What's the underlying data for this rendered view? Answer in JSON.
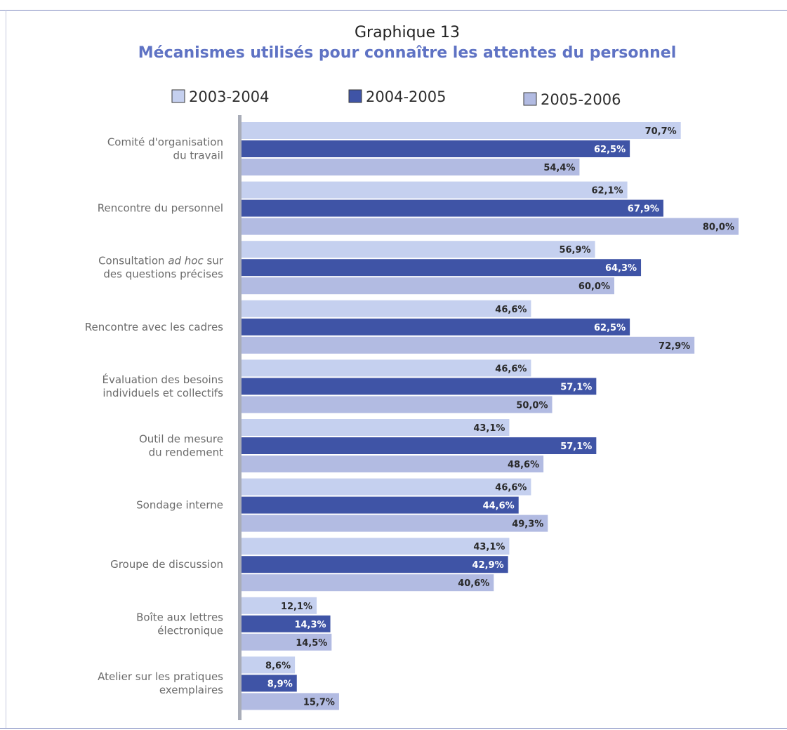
{
  "title": "Graphique 13",
  "subtitle": "Mécanismes utilisés pour connaître les attentes du personnel",
  "colors": {
    "light": "#c5d0ef",
    "dark": "#3f54a6",
    "medium": "#b2bbe2",
    "axis": "#a9adb8",
    "label_dark": "#2a2a2a",
    "label_light": "#ffffff"
  },
  "chart_data": {
    "type": "bar",
    "orientation": "horizontal",
    "title": "Graphique 13",
    "subtitle": "Mécanismes utilisés pour connaître les attentes du personnel",
    "legend_position": "top",
    "grid": false,
    "xlim": [
      0,
      100
    ],
    "categories": [
      [
        "Comité d'organisation",
        "du travail"
      ],
      [
        "Rencontre du personnel"
      ],
      [
        "Consultation ad hoc sur",
        "des questions précises"
      ],
      [
        "Rencontre avec les cadres"
      ],
      [
        "Évaluation des besoins",
        "individuels et collectifs"
      ],
      [
        "Outil de mesure",
        "du rendement"
      ],
      [
        "Sondage interne"
      ],
      [
        "Groupe de discussion"
      ],
      [
        "Boîte aux lettres",
        "électronique"
      ],
      [
        "Atelier sur les pratiques",
        "exemplaires"
      ]
    ],
    "series": [
      {
        "name": "2003-2004",
        "values": [
          70.7,
          62.1,
          56.9,
          46.6,
          46.6,
          43.1,
          46.6,
          43.1,
          12.1,
          8.6
        ],
        "labels": [
          "70,7%",
          "62,1%",
          "56,9%",
          "46,6%",
          "46,6%",
          "43,1%",
          "46,6%",
          "43,1%",
          "12,1%",
          "8,6%"
        ]
      },
      {
        "name": "2004-2005",
        "values": [
          62.5,
          67.9,
          64.3,
          62.5,
          57.1,
          57.1,
          44.6,
          42.9,
          14.3,
          8.9
        ],
        "labels": [
          "62,5%",
          "67,9%",
          "64,3%",
          "62,5%",
          "57,1%",
          "57,1%",
          "44,6%",
          "42,9%",
          "14,3%",
          "8,9%"
        ]
      },
      {
        "name": "2005-2006",
        "values": [
          54.4,
          80.0,
          60.0,
          72.9,
          50.0,
          48.6,
          49.3,
          40.6,
          14.5,
          15.7
        ],
        "labels": [
          "54,4%",
          "80,0%",
          "60,0%",
          "72,9%",
          "50,0%",
          "48,6%",
          "49,3%",
          "40,6%",
          "14,5%",
          "15,7%"
        ]
      }
    ]
  }
}
